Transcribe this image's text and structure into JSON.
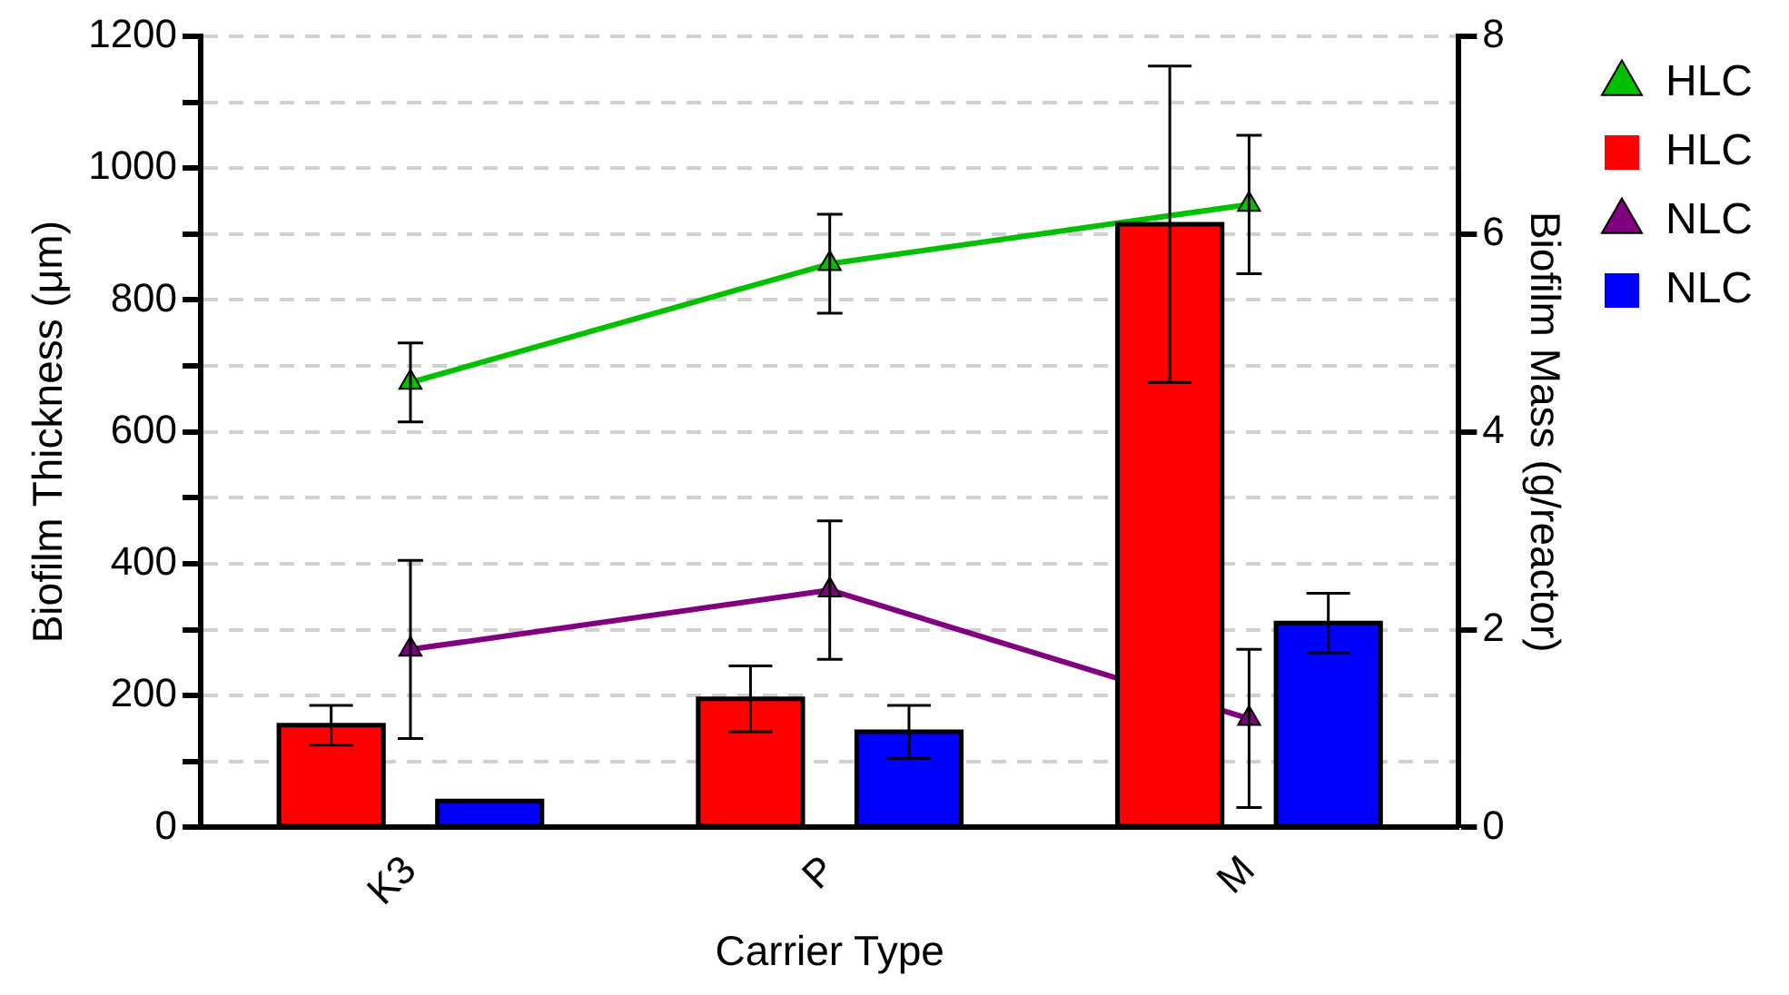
{
  "chart_data": {
    "type": "bar",
    "xlabel": "Carrier Type",
    "ylabel": "Biofilm Thickness (μm)",
    "y2label": "Biofilm Mass (g/reactor)",
    "categories": [
      "K3",
      "P",
      "M"
    ],
    "series": [
      {
        "name": "HLC",
        "type": "line",
        "axis": "y2",
        "color": "#00c000",
        "values": [
          4.5,
          5.7,
          6.3
        ],
        "errors": [
          0.4,
          0.5,
          0.7
        ]
      },
      {
        "name": "HLC",
        "color": "#ff0000",
        "values": [
          155,
          195,
          915
        ],
        "errors": [
          30,
          50,
          240
        ]
      },
      {
        "name": "NLC",
        "type": "line",
        "axis": "y2",
        "color": "#800080",
        "values": [
          1.8,
          2.4,
          1.1
        ],
        "errors": [
          0.9,
          0.7,
          [
            0.2,
            1.8
          ]
        ]
      },
      {
        "name": "NLC",
        "color": "#0000ff",
        "values": [
          40,
          145,
          310
        ],
        "errors": [
          null,
          40,
          45
        ]
      }
    ],
    "ylim": [
      0,
      1200
    ],
    "yticks": [
      0,
      {
        "value": 100,
        "label": null
      },
      200,
      {
        "value": 300,
        "label": null
      },
      400,
      {
        "value": 500,
        "label": null
      },
      600,
      {
        "value": 700,
        "label": null
      },
      800,
      {
        "value": 900,
        "label": null
      },
      1000,
      {
        "value": 1100,
        "label": null
      },
      1200
    ],
    "y2lim": [
      0,
      8
    ],
    "y2ticks": [
      0,
      2,
      4,
      6,
      8
    ],
    "grid": "y",
    "legend": "top right",
    "marker": "triangle"
  }
}
